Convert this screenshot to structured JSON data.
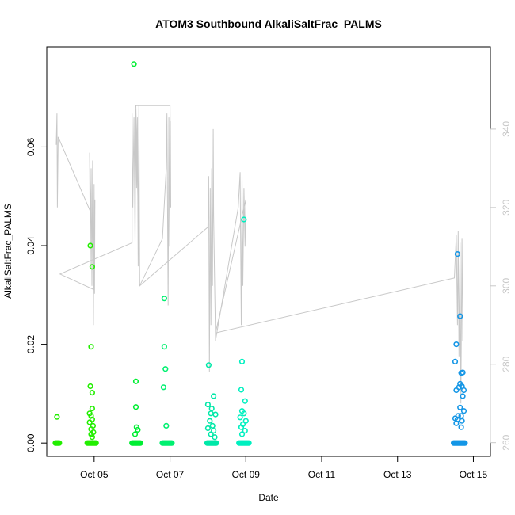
{
  "chart_data": {
    "type": "scatter",
    "title": "ATOM3 Southbound AlkaliSaltFrac_PALMS",
    "xlabel": "Date",
    "ylabel": "AlkaliSaltFrac_PALMS",
    "xlim": [
      3.75,
      15.45
    ],
    "ylim": [
      -0.0027,
      0.0803
    ],
    "y2lim": [
      256.5,
      361.0
    ],
    "x_ticks": [
      {
        "value": 5,
        "label": "Oct 05"
      },
      {
        "value": 7,
        "label": "Oct 07"
      },
      {
        "value": 9,
        "label": "Oct 09"
      },
      {
        "value": 11,
        "label": "Oct 11"
      },
      {
        "value": 13,
        "label": "Oct 13"
      },
      {
        "value": 15,
        "label": "Oct 15"
      }
    ],
    "y_ticks": [
      {
        "value": 0.0,
        "label": "0.00"
      },
      {
        "value": 0.02,
        "label": "0.02"
      },
      {
        "value": 0.04,
        "label": "0.04"
      },
      {
        "value": 0.06,
        "label": "0.06"
      }
    ],
    "y2_ticks": [
      {
        "value": 260,
        "label": "260"
      },
      {
        "value": 280,
        "label": "280"
      },
      {
        "value": 300,
        "label": "300"
      },
      {
        "value": 320,
        "label": "320"
      },
      {
        "value": 340,
        "label": "340"
      }
    ],
    "grid": false,
    "colors": {
      "line": "#c8c8c8",
      "g1": "#22ee00",
      "g2": "#00ee33",
      "g3": "#00f070",
      "g4": "#00e8a8",
      "g5": "#00f0c0",
      "g6": "#1496e6"
    },
    "line_series": [
      [
        4.0,
        336
      ],
      [
        4.02,
        344
      ],
      [
        4.03,
        320
      ],
      [
        4.05,
        338
      ],
      [
        4.9,
        319
      ],
      [
        4.88,
        334
      ],
      [
        4.9,
        305
      ],
      [
        4.92,
        330
      ],
      [
        4.94,
        300
      ],
      [
        4.96,
        332
      ],
      [
        4.98,
        290
      ],
      [
        5.0,
        326
      ],
      [
        5.01,
        298
      ],
      [
        5.02,
        322
      ],
      [
        5.0,
        299
      ],
      [
        4.1,
        303
      ],
      [
        6.0,
        311
      ],
      [
        6.0,
        344
      ],
      [
        6.02,
        320
      ],
      [
        6.05,
        343
      ],
      [
        6.08,
        311
      ],
      [
        6.1,
        345
      ],
      [
        6.12,
        325
      ],
      [
        6.14,
        343
      ],
      [
        6.16,
        305
      ],
      [
        6.18,
        346
      ],
      [
        6.2,
        300
      ],
      [
        6.8,
        312
      ],
      [
        6.9,
        330
      ],
      [
        6.92,
        344
      ],
      [
        6.95,
        295
      ],
      [
        6.97,
        343
      ],
      [
        6.99,
        310
      ],
      [
        7.01,
        342
      ],
      [
        7.02,
        320
      ],
      [
        7.0,
        346
      ],
      [
        6.1,
        346
      ],
      [
        6.2,
        300
      ],
      [
        8.0,
        315
      ],
      [
        8.02,
        328
      ],
      [
        8.04,
        278
      ],
      [
        8.06,
        325
      ],
      [
        8.08,
        290
      ],
      [
        8.1,
        330
      ],
      [
        8.12,
        300
      ],
      [
        8.14,
        340
      ],
      [
        8.15,
        318
      ],
      [
        8.2,
        286
      ],
      [
        8.8,
        320
      ],
      [
        8.85,
        329
      ],
      [
        8.88,
        290
      ],
      [
        8.9,
        328
      ],
      [
        8.92,
        300
      ],
      [
        8.95,
        325
      ],
      [
        8.98,
        310
      ],
      [
        9.0,
        322
      ],
      [
        8.2,
        288
      ],
      [
        14.5,
        302
      ],
      [
        14.55,
        313
      ],
      [
        14.58,
        290
      ],
      [
        14.6,
        314
      ],
      [
        14.62,
        282
      ],
      [
        14.65,
        311
      ],
      [
        14.67,
        270
      ],
      [
        14.7,
        312
      ],
      [
        14.72,
        286
      ]
    ],
    "groups": [
      {
        "color": "g1",
        "points": [
          [
            4.02,
            0.0053
          ],
          [
            4.9,
            0.04
          ],
          [
            4.95,
            0.0357
          ],
          [
            4.92,
            0.0195
          ],
          [
            4.9,
            0.0115
          ],
          [
            4.95,
            0.0102
          ],
          [
            4.95,
            0.007
          ],
          [
            4.88,
            0.006
          ],
          [
            4.92,
            0.0055
          ],
          [
            4.95,
            0.0048
          ],
          [
            4.88,
            0.0042
          ],
          [
            4.97,
            0.0035
          ],
          [
            4.92,
            0.0028
          ],
          [
            4.98,
            0.0022
          ],
          [
            4.92,
            0.0018
          ],
          [
            4.95,
            0.0012
          ]
        ]
      },
      {
        "color": "g2",
        "points": [
          [
            6.05,
            0.0768
          ],
          [
            6.1,
            0.0125
          ],
          [
            6.1,
            0.0073
          ],
          [
            6.12,
            0.0032
          ],
          [
            6.15,
            0.0027
          ],
          [
            6.08,
            0.0018
          ]
        ]
      },
      {
        "color": "g3",
        "points": [
          [
            6.85,
            0.0293
          ],
          [
            6.85,
            0.0195
          ],
          [
            6.88,
            0.015
          ],
          [
            6.83,
            0.0113
          ],
          [
            6.9,
            0.0035
          ]
        ]
      },
      {
        "color": "g4",
        "points": [
          [
            8.02,
            0.0158
          ],
          [
            8.15,
            0.0095
          ],
          [
            8.0,
            0.0078
          ],
          [
            8.1,
            0.007
          ],
          [
            8.08,
            0.006
          ],
          [
            8.2,
            0.0058
          ],
          [
            8.05,
            0.0045
          ],
          [
            8.12,
            0.0035
          ],
          [
            8.0,
            0.003
          ],
          [
            8.15,
            0.0025
          ],
          [
            8.08,
            0.0018
          ],
          [
            8.18,
            0.0012
          ]
        ]
      },
      {
        "color": "g5",
        "points": [
          [
            8.95,
            0.0453
          ],
          [
            8.9,
            0.0165
          ],
          [
            8.88,
            0.0108
          ],
          [
            8.98,
            0.0085
          ],
          [
            8.9,
            0.0065
          ],
          [
            8.95,
            0.006
          ],
          [
            8.85,
            0.0052
          ],
          [
            9.0,
            0.0045
          ],
          [
            8.92,
            0.0038
          ],
          [
            8.88,
            0.0032
          ],
          [
            8.98,
            0.0025
          ],
          [
            8.9,
            0.0018
          ]
        ]
      },
      {
        "color": "g6",
        "points": [
          [
            14.58,
            0.0383
          ],
          [
            14.65,
            0.0257
          ],
          [
            14.55,
            0.02
          ],
          [
            14.52,
            0.0165
          ],
          [
            14.68,
            0.0142
          ],
          [
            14.72,
            0.0143
          ],
          [
            14.65,
            0.012
          ],
          [
            14.7,
            0.0115
          ],
          [
            14.62,
            0.0113
          ],
          [
            14.55,
            0.0107
          ],
          [
            14.75,
            0.0107
          ],
          [
            14.72,
            0.0095
          ],
          [
            14.65,
            0.0072
          ],
          [
            14.75,
            0.0065
          ],
          [
            14.6,
            0.0055
          ],
          [
            14.68,
            0.0055
          ],
          [
            14.52,
            0.005
          ],
          [
            14.58,
            0.0048
          ],
          [
            14.7,
            0.0045
          ],
          [
            14.55,
            0.004
          ],
          [
            14.68,
            0.0032
          ]
        ]
      }
    ],
    "zero_clusters": [
      {
        "color": "g1",
        "x0": 3.98,
        "x1": 4.08
      },
      {
        "color": "g1",
        "x0": 4.82,
        "x1": 5.05
      },
      {
        "color": "g2",
        "x0": 6.0,
        "x1": 6.22
      },
      {
        "color": "g3",
        "x0": 6.8,
        "x1": 7.05
      },
      {
        "color": "g4",
        "x0": 7.98,
        "x1": 8.22
      },
      {
        "color": "g5",
        "x0": 8.82,
        "x1": 9.08
      },
      {
        "color": "g6",
        "x0": 14.48,
        "x1": 14.78
      }
    ]
  }
}
